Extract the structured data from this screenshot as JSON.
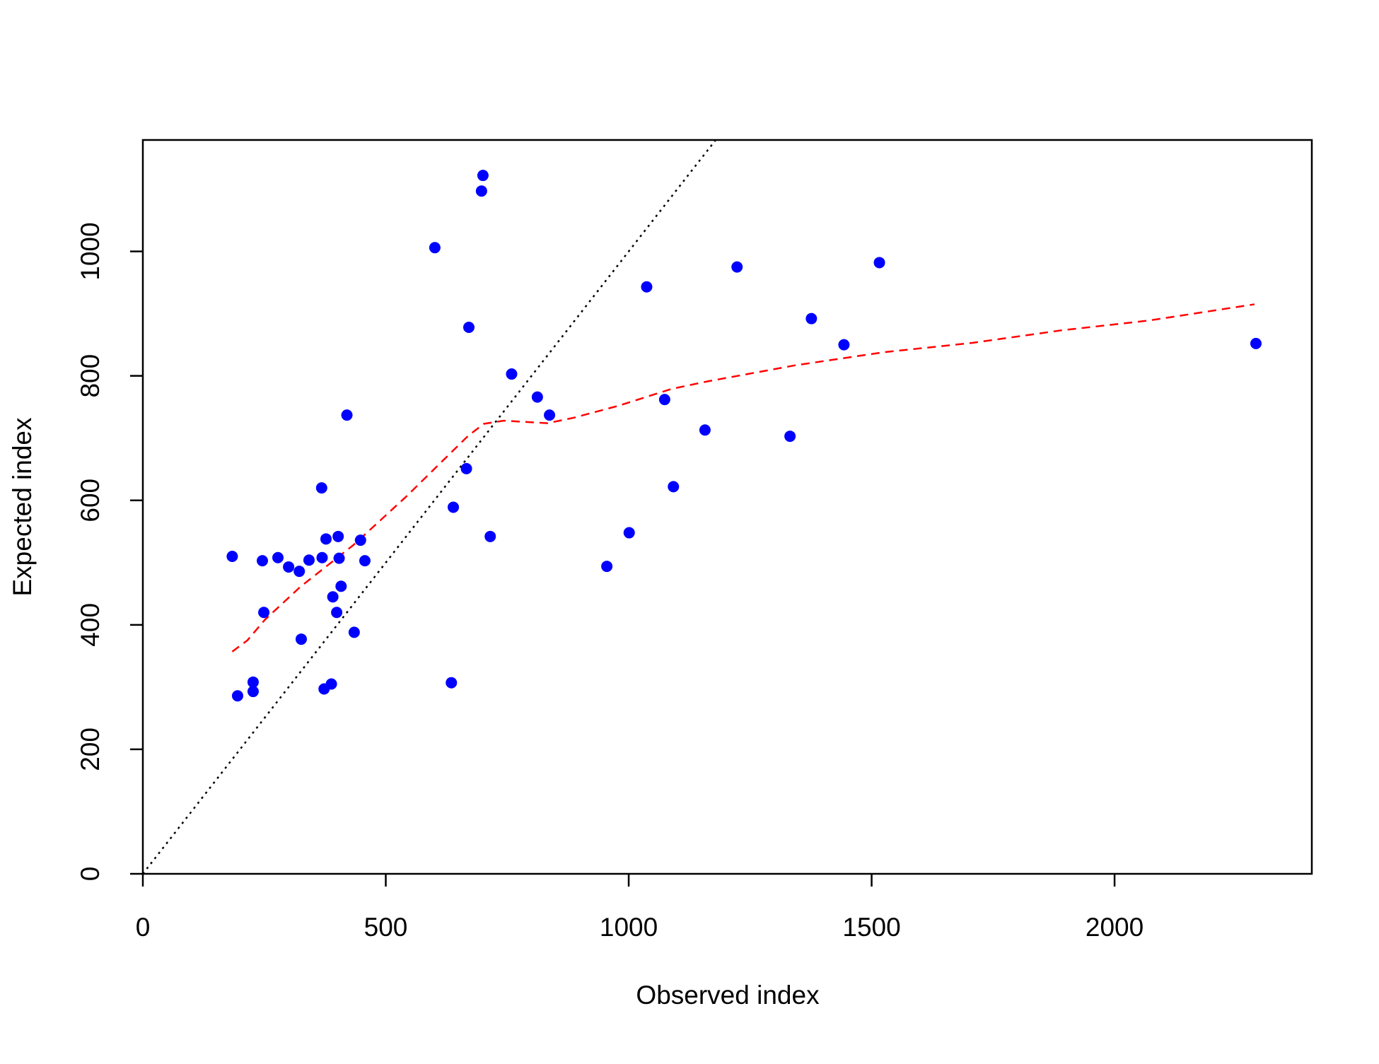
{
  "chart_data": {
    "type": "scatter",
    "xlabel": "Observed index",
    "ylabel": "Expected index",
    "x": [
      184,
      195,
      227,
      227,
      246,
      249,
      278,
      300,
      322,
      326,
      342,
      368,
      369,
      373,
      377,
      388,
      391,
      399,
      402,
      404,
      408,
      420,
      435,
      448,
      457,
      601,
      635,
      639,
      666,
      671,
      697,
      700,
      715,
      759,
      812,
      837,
      955,
      1001,
      1037,
      1074,
      1092,
      1157,
      1223,
      1332,
      1376,
      1443,
      1516,
      2291
    ],
    "y": [
      510,
      286,
      308,
      293,
      503,
      420,
      508,
      493,
      486,
      377,
      504,
      620,
      508,
      297,
      538,
      305,
      445,
      420,
      542,
      507,
      462,
      737,
      388,
      536,
      503,
      1006,
      307,
      589,
      651,
      878,
      1097,
      1122,
      542,
      803,
      766,
      737,
      494,
      548,
      943,
      762,
      622,
      713,
      975,
      703,
      892,
      850,
      982,
      852
    ],
    "color": "#0000ff",
    "trend": {
      "x": [
        184,
        215,
        251,
        324,
        433,
        542,
        615,
        670,
        702,
        743,
        833,
        888,
        979,
        1088,
        1161,
        1343,
        1525,
        1707,
        1889,
        2071,
        2288
      ],
      "y": [
        357,
        375,
        408,
        461,
        528,
        606,
        662,
        704,
        723,
        728,
        724,
        733,
        752,
        779,
        791,
        817,
        838,
        853,
        873,
        889,
        915
      ],
      "color": "#ff0000"
    },
    "xlim": [
      0,
      2406
    ],
    "ylim": [
      0,
      1179
    ],
    "xticks": [
      0,
      500,
      1000,
      1500,
      2000
    ],
    "yticks": [
      0,
      200,
      400,
      600,
      800,
      1000
    ]
  }
}
